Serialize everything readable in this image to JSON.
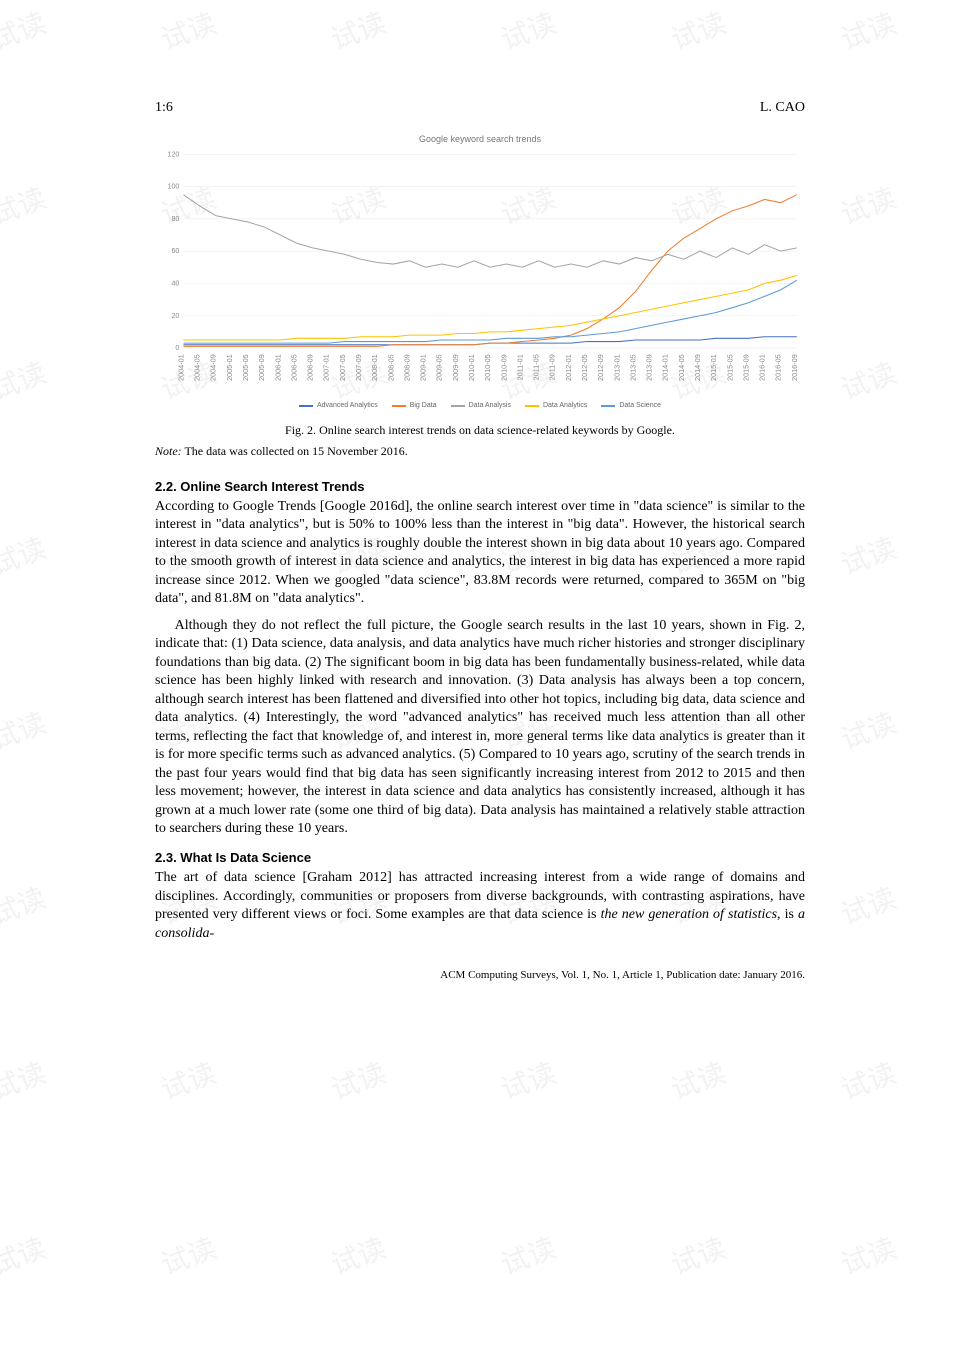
{
  "watermark_text": "试读",
  "header": {
    "left": "1:6",
    "right": "L. CAO"
  },
  "chart": {
    "type": "line",
    "title": "Google keyword search trends",
    "ylim": [
      0,
      120
    ],
    "ytick_step": 20,
    "yticks": [
      0,
      20,
      40,
      60,
      80,
      100,
      120
    ],
    "axis_fontsize": 7,
    "title_fontsize": 9,
    "background_color": "#ffffff",
    "grid_color": "#e8e8e8",
    "line_width": 1,
    "x_labels": [
      "2004-01",
      "2004-05",
      "2004-09",
      "2005-01",
      "2005-05",
      "2005-09",
      "2006-01",
      "2006-05",
      "2006-09",
      "2007-01",
      "2007-05",
      "2007-09",
      "2008-01",
      "2008-05",
      "2008-09",
      "2009-01",
      "2009-05",
      "2009-09",
      "2010-01",
      "2010-05",
      "2010-09",
      "2011-01",
      "2011-05",
      "2011-09",
      "2012-01",
      "2012-05",
      "2012-09",
      "2013-01",
      "2013-05",
      "2013-09",
      "2014-01",
      "2014-05",
      "2014-09",
      "2015-01",
      "2015-05",
      "2015-09",
      "2016-01",
      "2016-05",
      "2016-09"
    ],
    "series": [
      {
        "name": "Advanced Analytics",
        "color": "#4472c4",
        "values": [
          2,
          2,
          2,
          2,
          2,
          2,
          2,
          2,
          2,
          2,
          2,
          2,
          2,
          2,
          2,
          2,
          2,
          2,
          2,
          3,
          3,
          3,
          3,
          3,
          3,
          4,
          4,
          4,
          5,
          5,
          5,
          5,
          5,
          6,
          6,
          6,
          7,
          7,
          7
        ]
      },
      {
        "name": "Big Data",
        "color": "#ed7d31",
        "values": [
          1,
          1,
          1,
          1,
          1,
          1,
          1,
          1,
          1,
          1,
          1,
          1,
          1,
          2,
          2,
          2,
          2,
          2,
          2,
          3,
          3,
          4,
          5,
          6,
          8,
          12,
          18,
          25,
          35,
          48,
          60,
          68,
          74,
          80,
          85,
          88,
          92,
          90,
          95
        ]
      },
      {
        "name": "Data Analysis",
        "color": "#a5a5a5",
        "values": [
          95,
          88,
          82,
          80,
          78,
          75,
          70,
          65,
          62,
          60,
          58,
          55,
          53,
          52,
          54,
          50,
          52,
          50,
          54,
          50,
          52,
          50,
          54,
          50,
          52,
          50,
          54,
          52,
          56,
          54,
          58,
          55,
          60,
          56,
          62,
          58,
          64,
          60,
          62
        ]
      },
      {
        "name": "Data Analytics",
        "color": "#ffc000",
        "values": [
          5,
          5,
          5,
          5,
          5,
          5,
          5,
          6,
          6,
          6,
          6,
          7,
          7,
          7,
          8,
          8,
          8,
          9,
          9,
          10,
          10,
          11,
          12,
          13,
          14,
          16,
          18,
          20,
          22,
          24,
          26,
          28,
          30,
          32,
          34,
          36,
          40,
          42,
          45
        ]
      },
      {
        "name": "Data Science",
        "color": "#5b9bd5",
        "values": [
          3,
          3,
          3,
          3,
          3,
          3,
          3,
          3,
          3,
          3,
          4,
          4,
          4,
          4,
          4,
          4,
          5,
          5,
          5,
          5,
          6,
          6,
          6,
          7,
          7,
          8,
          9,
          10,
          12,
          14,
          16,
          18,
          20,
          22,
          25,
          28,
          32,
          36,
          42
        ]
      }
    ]
  },
  "fig_caption": {
    "label": "Fig. 2.",
    "text": "Online search interest trends on data science-related keywords by Google."
  },
  "note": {
    "label": "Note:",
    "text": "The data was collected on 15 November 2016."
  },
  "section_22": {
    "heading": "2.2. Online Search Interest Trends",
    "para1": "According to Google Trends [Google 2016d], the online search interest over time in \"data science\" is similar to the interest in \"data analytics\", but is 50% to 100% less than the interest in \"big data\". However, the historical search interest in data science and analytics is roughly double the interest shown in big data about 10 years ago. Compared to the smooth growth of interest in data science and analytics, the interest in big data has experienced a more rapid increase since 2012. When we googled \"data science\", 83.8M records were returned, compared to 365M on \"big data\", and 81.8M on \"data analytics\".",
    "para2": "Although they do not reflect the full picture, the Google search results in the last 10 years, shown in Fig. 2, indicate that: (1) Data science, data analysis, and data analytics have much richer histories and stronger disciplinary foundations than big data. (2) The significant boom in big data has been fundamentally business-related, while data science has been highly linked with research and innovation. (3) Data analysis has always been a top concern, although search interest has been flattened and diversified into other hot topics, including big data, data science and data analytics. (4) Interestingly, the word \"advanced analytics\" has received much less attention than all other terms, reflecting the fact that knowledge of, and interest in, more general terms like data analytics is greater than it is for more specific terms such as advanced analytics. (5) Compared to 10 years ago, scrutiny of the search trends in the past four years would find that big data has seen significantly increasing interest from 2012 to 2015 and then less movement; however, the interest in data science and data analytics has consistently increased, although it has grown at a much lower rate (some one third of big data). Data analysis has maintained a relatively stable attraction to searchers during these 10 years."
  },
  "section_23": {
    "heading": "2.3. What Is Data Science",
    "para1_pre": "The art of data science [Graham 2012] has attracted increasing interest from a wide range of domains and disciplines. Accordingly, communities or proposers from diverse backgrounds, with contrasting aspirations, have presented very different views or foci. Some examples are that data science is ",
    "para1_em1": "the new generation of statistics",
    "para1_mid": ", is ",
    "para1_em2": "a consolida-"
  },
  "footer": "ACM Computing Surveys, Vol. 1, No. 1, Article 1, Publication date: January 2016."
}
